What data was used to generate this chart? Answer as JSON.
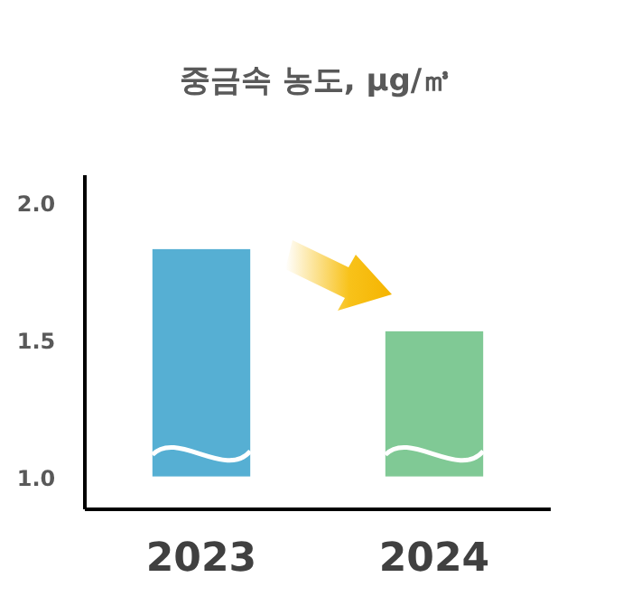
{
  "chart_data": {
    "type": "bar",
    "title": "중금속 농도, μg/㎥",
    "categories": [
      "2023",
      "2024"
    ],
    "values": [
      0.83,
      0.53
    ],
    "base": [
      1.0,
      1.0
    ],
    "colors": [
      "#56afd3",
      "#80c995"
    ],
    "ylim": [
      0.88,
      2.1
    ],
    "yticks": [
      {
        "value": 1.0,
        "label": "1.0"
      },
      {
        "value": 1.5,
        "label": "1.5"
      },
      {
        "value": 2.0,
        "label": "2.0"
      }
    ]
  }
}
